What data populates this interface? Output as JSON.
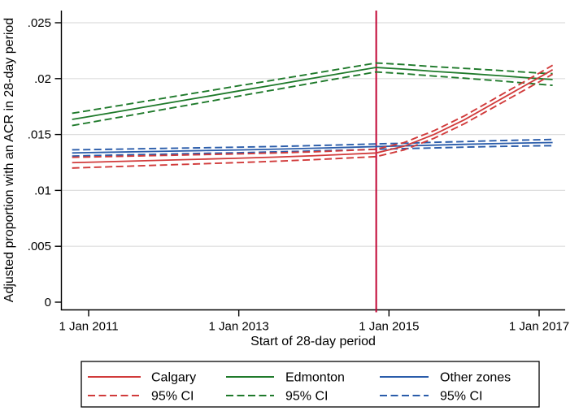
{
  "figure": {
    "background": "#ffffff"
  },
  "chart_data": {
    "type": "line",
    "title": "",
    "xlabel": "Start of 28-day period",
    "ylabel": "Adjusted proportion with an ACR in 28-day period",
    "x_unit": "decimal_year",
    "xlim": [
      2010.64,
      2017.35
    ],
    "ylim": [
      0,
      0.025
    ],
    "grid": {
      "axis": "y",
      "values": [
        0.005,
        0.01,
        0.015,
        0.02,
        0.025
      ],
      "color": "#dedede"
    },
    "x_ticks": [
      {
        "value": 2011,
        "label": "1 Jan 2011"
      },
      {
        "value": 2013,
        "label": "1 Jan 2013"
      },
      {
        "value": 2015,
        "label": "1 Jan 2015"
      },
      {
        "value": 2017,
        "label": "1 Jan 2017"
      }
    ],
    "y_ticks": [
      {
        "value": 0,
        "label": "0"
      },
      {
        "value": 0.005,
        "label": ".005"
      },
      {
        "value": 0.01,
        "label": ".01"
      },
      {
        "value": 0.015,
        "label": ".015"
      },
      {
        "value": 0.02,
        "label": ".02"
      },
      {
        "value": 0.025,
        "label": ".025"
      }
    ],
    "reference_line": {
      "orientation": "vertical",
      "x": 2014.83,
      "color": "#c10534"
    },
    "x": [
      2010.78,
      2011.0,
      2011.5,
      2012.0,
      2012.5,
      2013.0,
      2013.5,
      2014.0,
      2014.4,
      2014.83,
      2015.2,
      2015.6,
      2016.0,
      2016.5,
      2017.0,
      2017.18
    ],
    "series": [
      {
        "name": "Calgary",
        "color": "#d13b3b",
        "style": "solid",
        "values": [
          0.01248,
          0.01252,
          0.01261,
          0.0127,
          0.01279,
          0.01288,
          0.01298,
          0.0131,
          0.01322,
          0.01335,
          0.01395,
          0.015,
          0.0163,
          0.0182,
          0.0201,
          0.0208
        ],
        "ci_name": "95% CI",
        "ci_lower": [
          0.012,
          0.01205,
          0.01216,
          0.01227,
          0.01238,
          0.01249,
          0.01261,
          0.01275,
          0.01288,
          0.01302,
          0.01362,
          0.01466,
          0.01595,
          0.01783,
          0.01971,
          0.0204
        ],
        "ci_upper": [
          0.01296,
          0.01299,
          0.01306,
          0.01313,
          0.0132,
          0.01327,
          0.01335,
          0.01345,
          0.01356,
          0.01368,
          0.01428,
          0.01534,
          0.01665,
          0.01857,
          0.02049,
          0.0212
        ]
      },
      {
        "name": "Edmonton",
        "color": "#1f7a2b",
        "style": "solid",
        "values": [
          0.01635,
          0.0166,
          0.01717,
          0.01775,
          0.01832,
          0.0189,
          0.01947,
          0.02005,
          0.02051,
          0.021,
          0.02085,
          0.02065,
          0.02048,
          0.02025,
          0.02,
          0.01992
        ],
        "ci_name": "95% CI",
        "ci_lower": [
          0.0158,
          0.01606,
          0.01665,
          0.01725,
          0.01784,
          0.01844,
          0.01903,
          0.01963,
          0.0201,
          0.0206,
          0.02044,
          0.02023,
          0.02004,
          0.01978,
          0.0195,
          0.0194
        ],
        "ci_upper": [
          0.0169,
          0.01714,
          0.01769,
          0.01825,
          0.0188,
          0.01936,
          0.01991,
          0.02047,
          0.02092,
          0.0214,
          0.02126,
          0.02107,
          0.02092,
          0.02072,
          0.0205,
          0.02044
        ]
      },
      {
        "name": "Other zones",
        "color": "#2a5caa",
        "style": "solid",
        "values": [
          0.01335,
          0.01338,
          0.01344,
          0.0135,
          0.01356,
          0.01362,
          0.01369,
          0.01377,
          0.01384,
          0.01392,
          0.01398,
          0.01405,
          0.01412,
          0.0142,
          0.01426,
          0.01428
        ],
        "ci_name": "95% CI",
        "ci_lower": [
          0.01307,
          0.01311,
          0.01318,
          0.01324,
          0.01331,
          0.01337,
          0.01345,
          0.01353,
          0.0136,
          0.01368,
          0.01374,
          0.0138,
          0.01387,
          0.01394,
          0.01399,
          0.014
        ],
        "ci_upper": [
          0.01363,
          0.01365,
          0.0137,
          0.01376,
          0.01381,
          0.01387,
          0.01393,
          0.01401,
          0.01408,
          0.01416,
          0.01422,
          0.0143,
          0.01437,
          0.01446,
          0.01453,
          0.01456
        ]
      }
    ],
    "legend": {
      "position": "bottom-center",
      "border": true,
      "border_color": "#000000",
      "columns": [
        {
          "color": "#d13b3b",
          "items": [
            {
              "label": "Calgary",
              "dashed": false
            },
            {
              "label": "95% CI",
              "dashed": true
            }
          ]
        },
        {
          "color": "#1f7a2b",
          "items": [
            {
              "label": "Edmonton",
              "dashed": false
            },
            {
              "label": "95% CI",
              "dashed": true
            }
          ]
        },
        {
          "color": "#2a5caa",
          "items": [
            {
              "label": "Other zones",
              "dashed": false
            },
            {
              "label": "95% CI",
              "dashed": true
            }
          ]
        }
      ]
    }
  }
}
